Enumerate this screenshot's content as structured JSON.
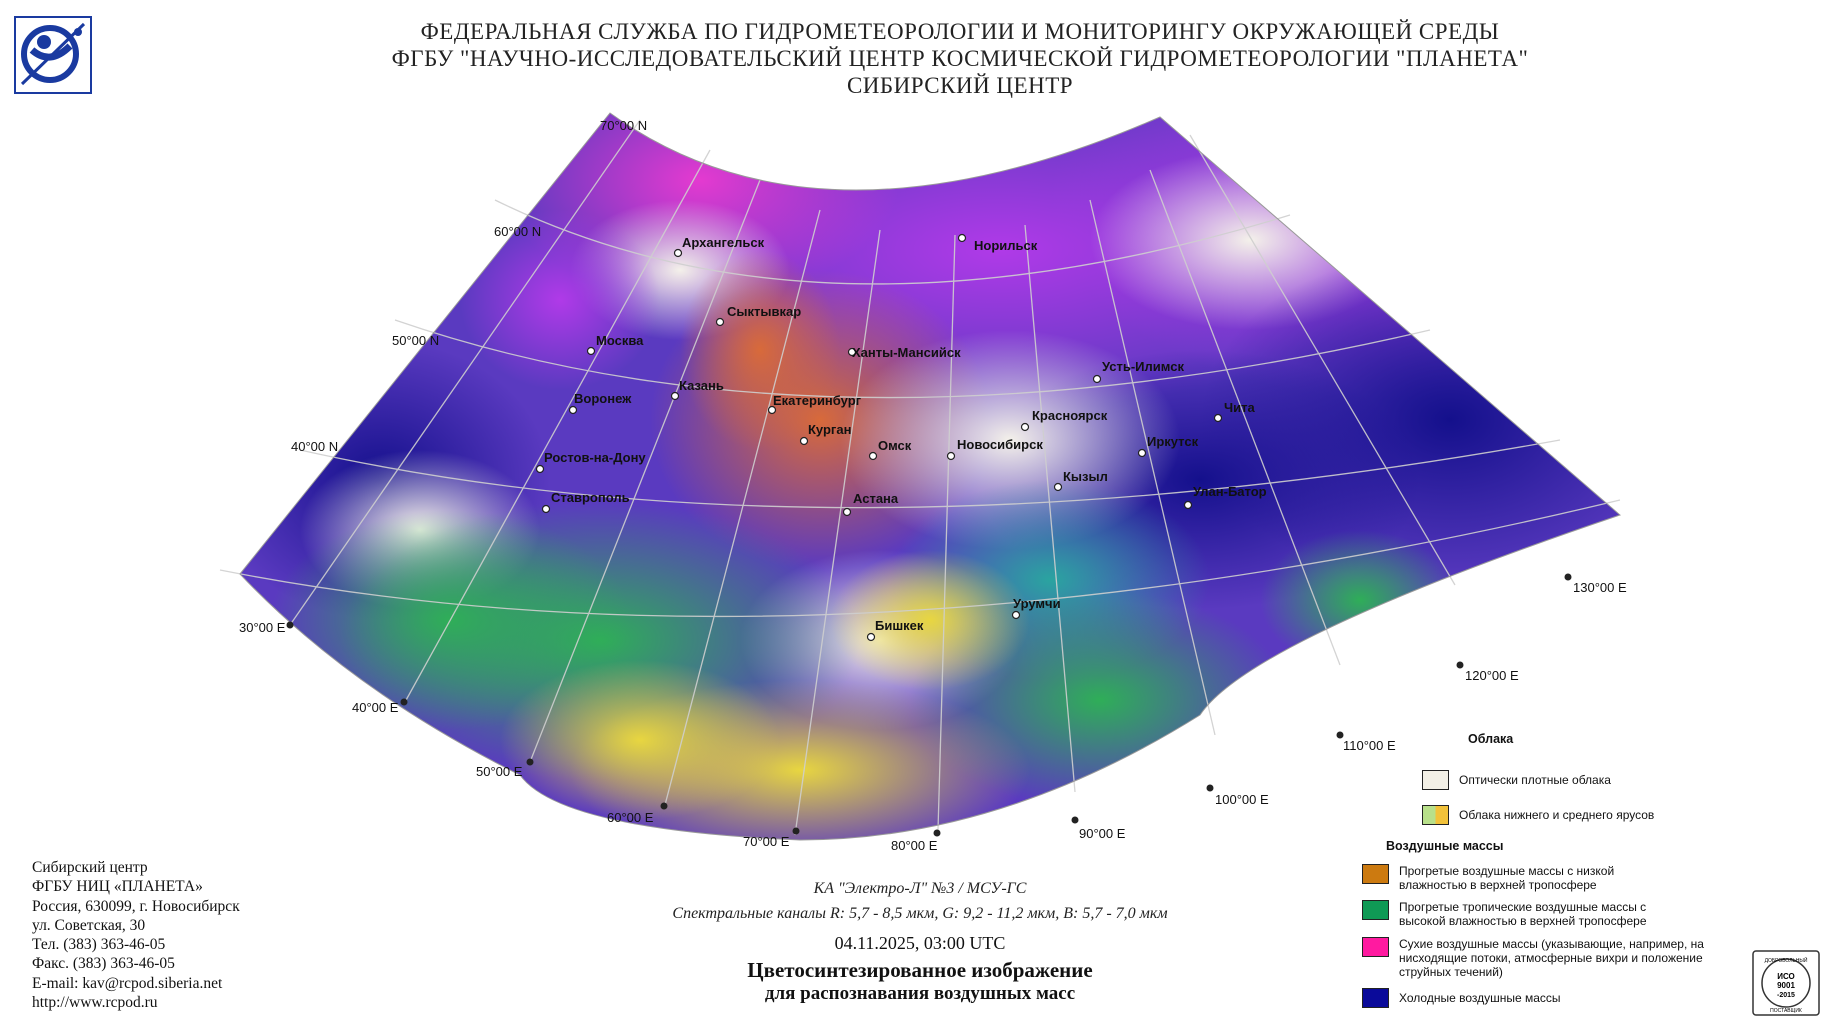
{
  "header": {
    "line1": "ФЕДЕРАЛЬНАЯ СЛУЖБА ПО ГИДРОМЕТЕОРОЛОГИИ И МОНИТОРИНГУ ОКРУЖАЮЩЕЙ СРЕДЫ",
    "line2": "ФГБУ \"НАУЧНО-ИССЛЕДОВАТЕЛЬСКИЙ ЦЕНТР КОСМИЧЕСКОЙ ГИДРОМЕТЕОРОЛОГИИ \"ПЛАНЕТА\"",
    "line3": "СИБИРСКИЙ ЦЕНТР"
  },
  "map": {
    "latitude_labels": [
      "70°00 N",
      "60°00 N",
      "50°00 N",
      "40°00 N"
    ],
    "longitude_labels": [
      "30°00 E",
      "40°00 E",
      "50°00 E",
      "60°00 E",
      "70°00 E",
      "80°00 E",
      "90°00 E",
      "100°00 E",
      "110°00 E",
      "120°00 E",
      "130°00 E"
    ],
    "cities": [
      "Архангельск",
      "Норильск",
      "Сыктывкар",
      "Москва",
      "Ханты-Мансийск",
      "Казань",
      "Усть-Илимск",
      "Воронеж",
      "Екатеринбург",
      "Красноярск",
      "Чита",
      "Курган",
      "Омск",
      "Новосибирск",
      "Иркутск",
      "Ростов-на-Дону",
      "Кызыл",
      "Улан-Батор",
      "Ставрополь",
      "Астана",
      "Урумчи",
      "Бишкек"
    ]
  },
  "contacts": {
    "line1": "Сибирский центр",
    "line2": "ФГБУ НИЦ «ПЛАНЕТА»",
    "line3": "Россия, 630099, г. Новосибирск",
    "line4": "ул. Советская, 30",
    "line5": "Тел. (383) 363-46-05",
    "line6": "Факс. (383) 363-46-05",
    "line7": "E-mail: kav@rcpod.siberia.net",
    "line8": "http://www.rcpod.ru"
  },
  "caption": {
    "satellite": "КА \"Электро-Л\" №3 / МСУ-ГС",
    "channels": "Спектральные каналы R: 5,7 - 8,5 мкм, G: 9,2 - 11,2 мкм, B: 5,7 - 7,0 мкм",
    "datetime": "04.11.2025, 03:00 UTC",
    "title": "Цветосинтезированное изображение",
    "subtitle": "для распознавания воздушных масс"
  },
  "legend": {
    "clouds_heading": "Облака",
    "dense_clouds": "Оптически плотные облака",
    "low_mid_clouds": "Облака нижнего и среднего ярусов",
    "air_masses_heading": "Воздушные массы",
    "warm_dry": "Прогретые воздушные массы с низкой влажностью в верхней тропосфере",
    "warm_tropical": "Прогретые тропичеcкие воздушные массы с высокой влажностью в верхней тропосфере",
    "dry": "Сухие воздушные массы (указывающие, например, на нисходящие потоки, атмосферные вихри и положение струйных течений)",
    "cold": "Холодные воздушные массы",
    "colors": {
      "dense_clouds": "#f3f0e6",
      "low_mid_left": "#b8e08a",
      "low_mid_right": "#f2c23a",
      "warm_dry": "#cc7a10",
      "warm_tropical": "#0f9a55",
      "dry": "#ff1aa0",
      "cold": "#0a0a9a"
    }
  },
  "iso_badge": {
    "top": "ДОБРОВОЛЬНЫЙ",
    "line1": "ИСО",
    "line2": "9001",
    "line3": "-2015",
    "bottom": "ПОСТАВЩИК"
  }
}
